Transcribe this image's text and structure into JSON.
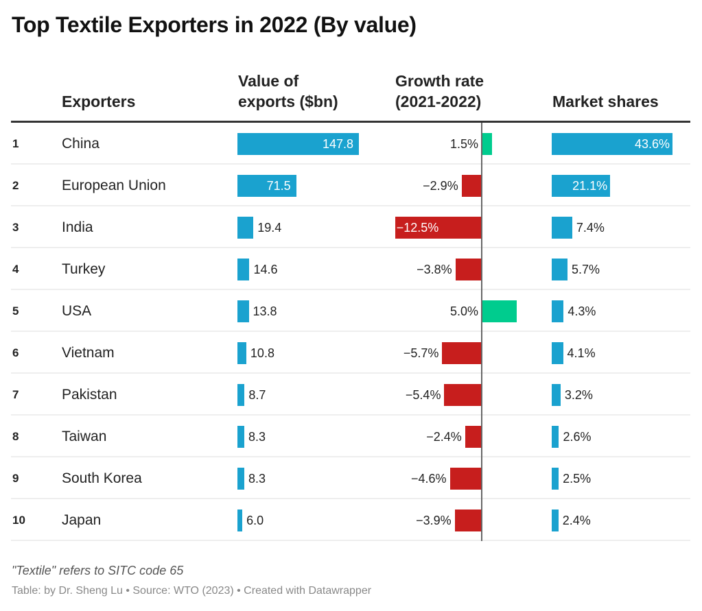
{
  "title": "Top Textile Exporters in 2022 (By value)",
  "columns": {
    "exporters": "Exporters",
    "value_line1": "Value of",
    "value_line2": "exports ($bn)",
    "growth_line1": "Growth rate",
    "growth_line2": "(2021-2022)",
    "share": "Market shares"
  },
  "colors": {
    "bar": "#1aa2cf",
    "positive": "#00cc8e",
    "negative": "#c71e1d"
  },
  "chart_data": {
    "type": "table",
    "rows": [
      {
        "rank": "1",
        "name": "China",
        "value": 147.8,
        "value_label": "147.8",
        "growth": 1.5,
        "growth_label": "1.5%",
        "share": 43.6,
        "share_label": "43.6%"
      },
      {
        "rank": "2",
        "name": "European Union",
        "value": 71.5,
        "value_label": "71.5",
        "growth": -2.9,
        "growth_label": "−2.9%",
        "share": 21.1,
        "share_label": "21.1%"
      },
      {
        "rank": "3",
        "name": "India",
        "value": 19.4,
        "value_label": "19.4",
        "growth": -12.5,
        "growth_label": "−12.5%",
        "share": 7.4,
        "share_label": "7.4%"
      },
      {
        "rank": "4",
        "name": "Turkey",
        "value": 14.6,
        "value_label": "14.6",
        "growth": -3.8,
        "growth_label": "−3.8%",
        "share": 5.7,
        "share_label": "5.7%"
      },
      {
        "rank": "5",
        "name": "USA",
        "value": 13.8,
        "value_label": "13.8",
        "growth": 5.0,
        "growth_label": "5.0%",
        "share": 4.3,
        "share_label": "4.3%"
      },
      {
        "rank": "6",
        "name": "Vietnam",
        "value": 10.8,
        "value_label": "10.8",
        "growth": -5.7,
        "growth_label": "−5.7%",
        "share": 4.1,
        "share_label": "4.1%"
      },
      {
        "rank": "7",
        "name": "Pakistan",
        "value": 8.7,
        "value_label": "8.7",
        "growth": -5.4,
        "growth_label": "−5.4%",
        "share": 3.2,
        "share_label": "3.2%"
      },
      {
        "rank": "8",
        "name": "Taiwan",
        "value": 8.3,
        "value_label": "8.3",
        "growth": -2.4,
        "growth_label": "−2.4%",
        "share": 2.6,
        "share_label": "2.6%"
      },
      {
        "rank": "9",
        "name": "South Korea",
        "value": 8.3,
        "value_label": "8.3",
        "growth": -4.6,
        "growth_label": "−4.6%",
        "share": 2.5,
        "share_label": "2.5%"
      },
      {
        "rank": "10",
        "name": "Japan",
        "value": 6.0,
        "value_label": "6.0",
        "growth": -3.9,
        "growth_label": "−3.9%",
        "share": 2.4,
        "share_label": "2.4%"
      }
    ]
  },
  "notes": "\"Textile\" refers to SITC code 65",
  "source": "Table: by Dr. Sheng Lu • Source: WTO (2023) • Created with Datawrapper"
}
